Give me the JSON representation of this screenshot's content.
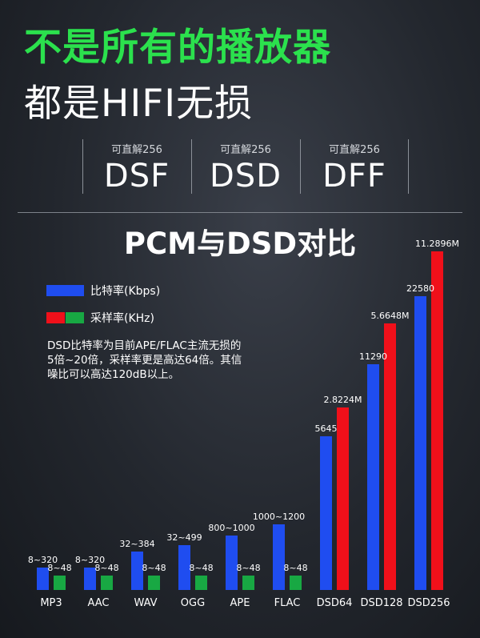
{
  "headline": {
    "line1": "不是所有的播放器",
    "line2": "都是HIFI无损"
  },
  "formats": [
    {
      "caption": "可直解256",
      "name": "DSF"
    },
    {
      "caption": "可直解256",
      "name": "DSD"
    },
    {
      "caption": "可直解256",
      "name": "DFF"
    }
  ],
  "legend": {
    "bitrate_label": "比特率(Kbps)",
    "samplerate_label": "采样率(KHz)"
  },
  "description": [
    "DSD比特率为目前APE/FLAC主流无损的",
    "5倍~20倍，采样率更是高达64倍。其信",
    "噪比可以高达120dB以上。"
  ],
  "colors": {
    "headline_green": "#2be14d",
    "bitrate_blue": "#1f4df0",
    "samplerate_red": "#f0101a",
    "samplerate_green": "#18a843"
  },
  "chart_data": {
    "type": "bar",
    "title": "PCM与DSD对比",
    "categories": [
      "MP3",
      "AAC",
      "WAV",
      "OGG",
      "APE",
      "FLAC",
      "DSD64",
      "DSD128",
      "DSD256"
    ],
    "series": [
      {
        "name": "比特率(Kbps)",
        "value_labels": [
          "8~320",
          "8~320",
          "32~384",
          "32~499",
          "800~1000",
          "1000~1200",
          "5645",
          "11290",
          "22580"
        ]
      },
      {
        "name": "采样率(KHz)",
        "value_labels": [
          "8~48",
          "8~48",
          "8~48",
          "8~48",
          "8~48",
          "8~48",
          "2.8224M",
          "5.6648M",
          "11.2896M"
        ]
      }
    ],
    "note": "bar heights are not to scale"
  }
}
